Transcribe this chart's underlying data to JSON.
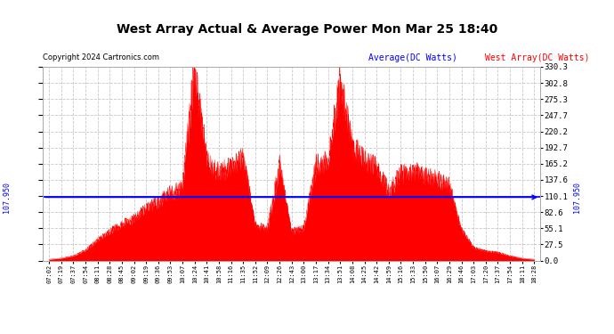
{
  "title": "West Array Actual & Average Power Mon Mar 25 18:40",
  "copyright": "Copyright 2024 Cartronics.com",
  "legend_avg": "Average(DC Watts)",
  "legend_west": "West Array(DC Watts)",
  "avg_value": 107.95,
  "avg_label": "107.950",
  "ylabel_right_ticks": [
    0.0,
    27.5,
    55.1,
    82.6,
    110.1,
    137.6,
    165.2,
    192.7,
    220.2,
    247.7,
    275.3,
    302.8,
    330.3
  ],
  "fill_color": "#ff0000",
  "line_color": "#ff0000",
  "avg_line_color": "#0000ff",
  "background_color": "#ffffff",
  "grid_color": "#c8c8c8",
  "title_color": "#000000",
  "copyright_color": "#000000",
  "legend_avg_color": "#0000ff",
  "legend_west_color": "#ff0000",
  "x_tick_labels": [
    "07:02",
    "07:19",
    "07:37",
    "07:54",
    "08:11",
    "08:28",
    "08:45",
    "09:02",
    "09:19",
    "09:36",
    "09:53",
    "10:07",
    "10:24",
    "10:41",
    "10:58",
    "11:16",
    "11:35",
    "11:52",
    "12:09",
    "12:26",
    "12:43",
    "13:00",
    "13:17",
    "13:34",
    "13:51",
    "14:08",
    "14:25",
    "14:42",
    "14:59",
    "15:16",
    "15:33",
    "15:50",
    "16:07",
    "16:29",
    "16:46",
    "17:03",
    "17:20",
    "17:37",
    "17:54",
    "18:11",
    "18:28"
  ],
  "ymax": 330.3,
  "ymin": 0.0,
  "key_values": [
    2,
    4,
    8,
    18,
    35,
    50,
    62,
    72,
    88,
    100,
    115,
    125,
    330,
    170,
    150,
    160,
    175,
    60,
    55,
    162,
    50,
    55,
    162,
    170,
    308,
    195,
    170,
    158,
    118,
    148,
    152,
    145,
    138,
    128,
    52,
    22,
    16,
    14,
    8,
    4,
    2
  ]
}
